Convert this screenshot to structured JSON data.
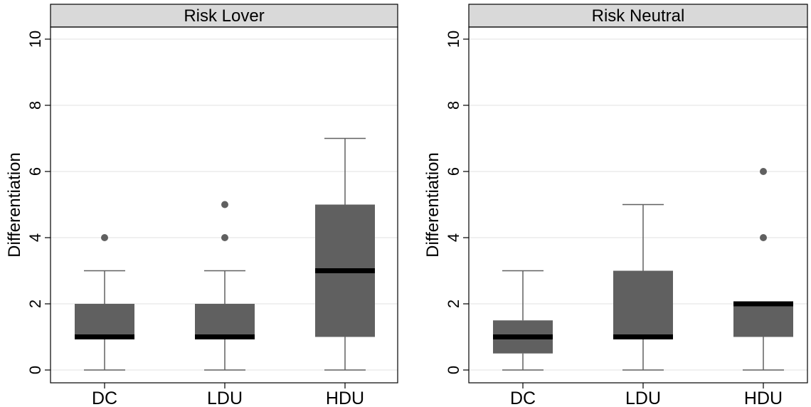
{
  "colors": {
    "box_fill": "#606060",
    "median": "#000000",
    "whisker": "#606060",
    "outlier": "#606060",
    "grid": "#e8e8e8",
    "strip_fill": "#d9d9d9"
  },
  "chart_data": [
    {
      "type": "box",
      "title": "Risk Lover",
      "xlabel": "",
      "ylabel": "Differentiation",
      "ylim": [
        0,
        10.5
      ],
      "yticks": [
        "0",
        "2",
        "4",
        "6",
        "8",
        "10"
      ],
      "ytick_values": [
        0,
        2,
        4,
        6,
        8,
        10
      ],
      "grid": true,
      "categories": [
        "DC",
        "LDU",
        "HDU"
      ],
      "boxes": [
        {
          "min": 0,
          "q1": 1,
          "median": 1,
          "q3": 2,
          "max": 3,
          "outliers": [
            4
          ]
        },
        {
          "min": 0,
          "q1": 1,
          "median": 1,
          "q3": 2,
          "max": 3,
          "outliers": [
            4,
            5
          ]
        },
        {
          "min": 0,
          "q1": 1,
          "median": 3,
          "q3": 5,
          "max": 7,
          "outliers": []
        }
      ]
    },
    {
      "type": "box",
      "title": "Risk Neutral",
      "xlabel": "",
      "ylabel": "Differentiation",
      "ylim": [
        0,
        10.5
      ],
      "yticks": [
        "0",
        "2",
        "4",
        "6",
        "8",
        "10"
      ],
      "ytick_values": [
        0,
        2,
        4,
        6,
        8,
        10
      ],
      "grid": true,
      "categories": [
        "DC",
        "LDU",
        "HDU"
      ],
      "boxes": [
        {
          "min": 0,
          "q1": 0.5,
          "median": 1,
          "q3": 1.5,
          "max": 3,
          "outliers": []
        },
        {
          "min": 0,
          "q1": 1,
          "median": 1,
          "q3": 3,
          "max": 5,
          "outliers": []
        },
        {
          "min": 0,
          "q1": 1,
          "median": 2,
          "q3": 2,
          "max": 2,
          "outliers": [
            4,
            6
          ]
        }
      ]
    }
  ]
}
